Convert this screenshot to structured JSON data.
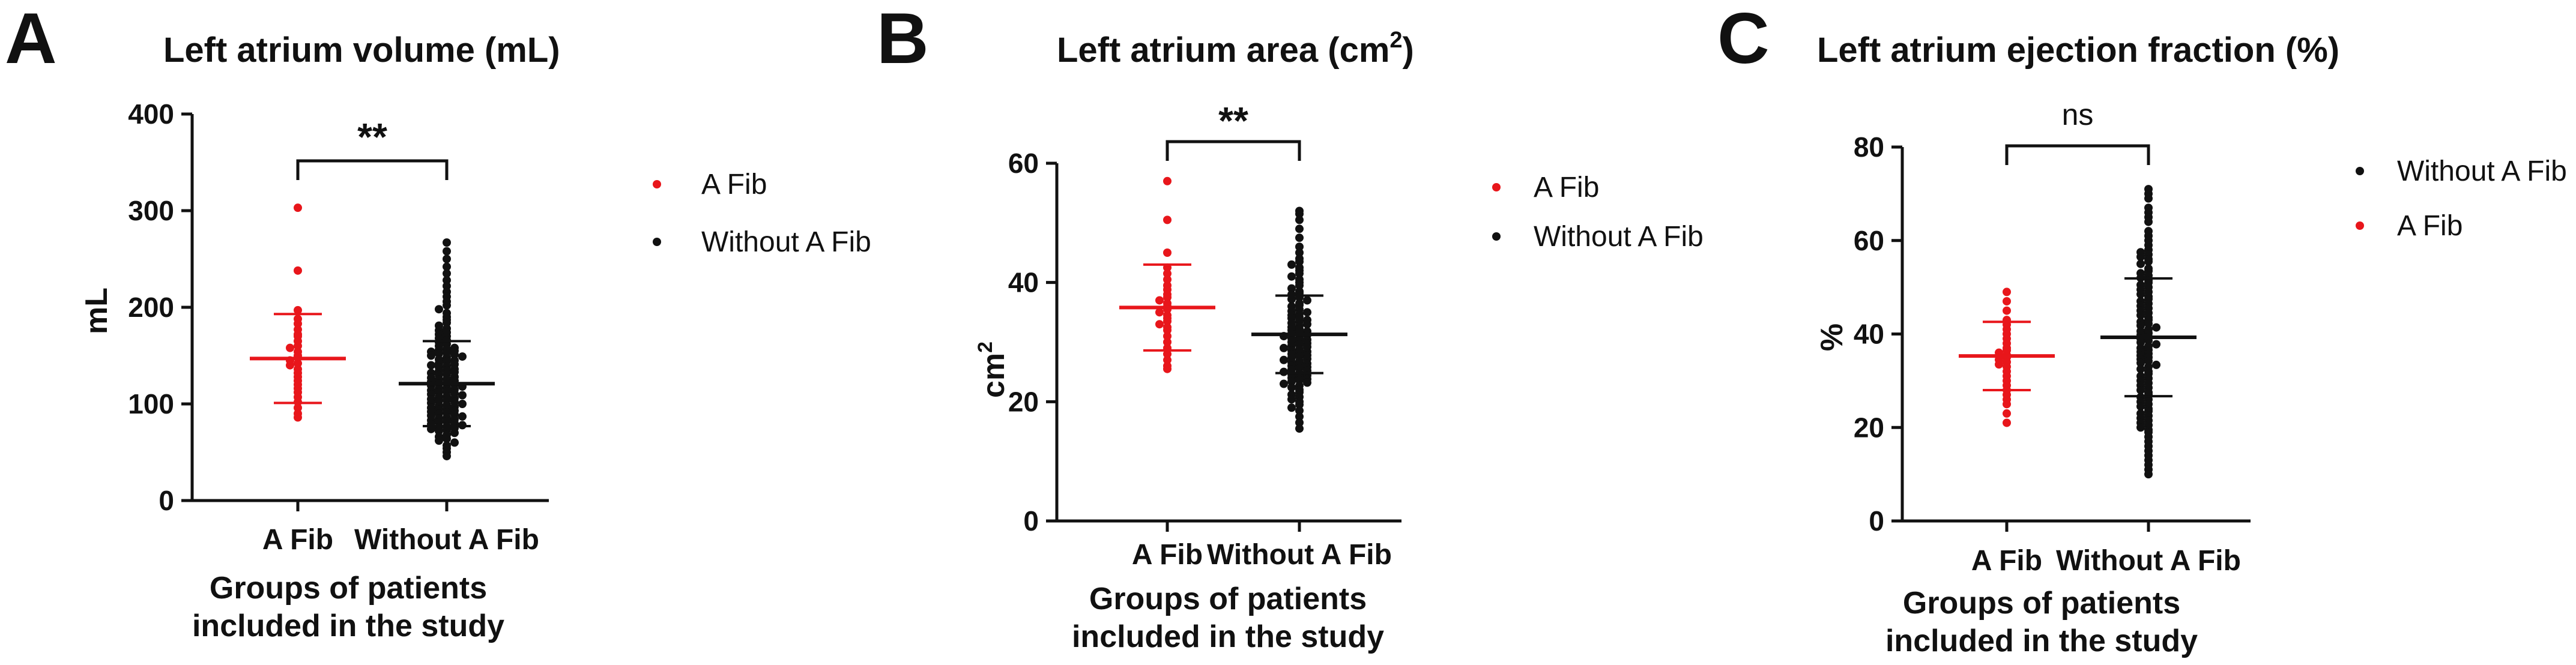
{
  "chart_data": [
    {
      "type": "scatter",
      "panel": "A",
      "title": "Left atrium volume (mL)",
      "ylabel": "mL",
      "xlabel_lines": [
        "Groups of patients",
        "included in the study"
      ],
      "ylim": [
        0,
        400
      ],
      "yticks": [
        0,
        100,
        200,
        300,
        400
      ],
      "categories": [
        "A Fib",
        "Without A Fib"
      ],
      "series": [
        {
          "name": "A Fib",
          "color": "#e8161b",
          "mean": 147,
          "sd": 46,
          "values": [
            303,
            238,
            197,
            188,
            183,
            177,
            172,
            170,
            165,
            160,
            158,
            154,
            150,
            148,
            145,
            142,
            140,
            136,
            132,
            128,
            124,
            120,
            116,
            112,
            107,
            102,
            96,
            90,
            86
          ]
        },
        {
          "name": "Without A Fib",
          "color": "#111111",
          "mean": 121,
          "sd": 44,
          "values": [
            267,
            258,
            250,
            242,
            235,
            228,
            222,
            216,
            211,
            206,
            202,
            198,
            194,
            190,
            187,
            184,
            181,
            178,
            176,
            174,
            172,
            170,
            168,
            166,
            164,
            162,
            160,
            158,
            157,
            156,
            155,
            154,
            153,
            152,
            151,
            150,
            149,
            148,
            146,
            145,
            144,
            142,
            141,
            140,
            139,
            138,
            136,
            135,
            134,
            133,
            132,
            131,
            130,
            128,
            127,
            126,
            125,
            124,
            123,
            122,
            121,
            120,
            119,
            118,
            117,
            116,
            115,
            114,
            113,
            112,
            111,
            110,
            109,
            108,
            107,
            106,
            105,
            104,
            103,
            102,
            101,
            100,
            99,
            98,
            97,
            96,
            95,
            94,
            93,
            92,
            91,
            90,
            89,
            88,
            87,
            86,
            85,
            84,
            83,
            82,
            81,
            80,
            79,
            78,
            77,
            76,
            75,
            74,
            73,
            72,
            70,
            68,
            66,
            64,
            62,
            60,
            57,
            54,
            50,
            46
          ]
        }
      ],
      "significance": "**",
      "legend": [
        {
          "label": "A Fib",
          "color": "#e8161b"
        },
        {
          "label": "Without A Fib",
          "color": "#111111"
        }
      ],
      "legend_position": "right"
    },
    {
      "type": "scatter",
      "panel": "B",
      "title": "Left atrium area (cm",
      "title_sup": "2",
      "title_end": ")",
      "ylabel": "cm",
      "ylabel_sup": "2",
      "xlabel_lines": [
        "Groups of patients",
        "included in the study"
      ],
      "ylim": [
        0,
        60
      ],
      "yticks": [
        0,
        20,
        40,
        60
      ],
      "categories": [
        "A Fib",
        "Without A Fib"
      ],
      "series": [
        {
          "name": "A Fib",
          "color": "#e8161b",
          "mean": 35.8,
          "sd": 7.2,
          "values": [
            57,
            50.5,
            45,
            42.5,
            41.5,
            40.5,
            39.5,
            38.8,
            38,
            37.5,
            37,
            36.5,
            36,
            35.5,
            35,
            34.5,
            34,
            33.5,
            33,
            32.5,
            32,
            31,
            30,
            29,
            28,
            27,
            26,
            25.5
          ]
        },
        {
          "name": "Without A Fib",
          "color": "#111111",
          "mean": 31.3,
          "sd": 6.5,
          "values": [
            52,
            51.5,
            50.5,
            49,
            47.5,
            46,
            45,
            44,
            43.5,
            43,
            42.5,
            42,
            41.5,
            41,
            40.5,
            40,
            39.5,
            39,
            38.5,
            38.2,
            38,
            37.5,
            37.2,
            37,
            36.5,
            36.2,
            36,
            35.5,
            35.2,
            35,
            34.7,
            34.5,
            34.2,
            34,
            33.7,
            33.5,
            33.2,
            33,
            32.7,
            32.5,
            32.2,
            32,
            31.8,
            31.6,
            31.4,
            31.2,
            31,
            30.8,
            30.6,
            30.4,
            30.2,
            30,
            29.8,
            29.6,
            29.4,
            29.2,
            29,
            28.8,
            28.6,
            28.4,
            28.2,
            28,
            27.8,
            27.6,
            27.4,
            27.2,
            27,
            26.8,
            26.6,
            26.4,
            26.2,
            26,
            25.8,
            25.6,
            25.4,
            25.2,
            25,
            24.8,
            24.6,
            24.4,
            24.2,
            24,
            23.8,
            23.6,
            23.4,
            23.2,
            23,
            22.7,
            22.4,
            22,
            21.6,
            21.2,
            20.8,
            20.4,
            20,
            19.5,
            19,
            18.5,
            17.5,
            16.5,
            15.5
          ]
        }
      ],
      "significance": "**",
      "legend": [
        {
          "label": "A Fib",
          "color": "#e8161b"
        },
        {
          "label": "Without A Fib",
          "color": "#111111"
        }
      ],
      "legend_position": "right"
    },
    {
      "type": "scatter",
      "panel": "C",
      "title": "Left atrium ejection fraction (%)",
      "ylabel": "%",
      "xlabel_lines": [
        "Groups of patients",
        "included in the study"
      ],
      "ylim": [
        0,
        80
      ],
      "yticks": [
        0,
        20,
        40,
        60,
        80
      ],
      "categories": [
        "A Fib",
        "Without A Fib"
      ],
      "series": [
        {
          "name": "A Fib",
          "color": "#e8161b",
          "mean": 35.3,
          "sd": 7.3,
          "values": [
            49,
            47,
            45,
            43,
            42,
            41,
            40,
            39,
            38,
            37,
            36.5,
            36,
            35.5,
            35,
            34.5,
            34,
            33.5,
            33,
            32,
            31,
            30,
            29,
            28,
            27,
            26,
            25,
            23,
            21
          ]
        },
        {
          "name": "Without A Fib",
          "color": "#111111",
          "mean": 39.3,
          "sd": 12.6,
          "values": [
            71,
            70,
            69,
            67,
            66,
            65,
            64,
            62,
            61,
            60,
            59,
            58,
            57.5,
            57,
            56.5,
            56,
            55.5,
            55,
            54,
            53.5,
            53,
            52.5,
            52,
            51.5,
            51,
            50.5,
            50,
            49.5,
            49,
            48.5,
            48,
            47.5,
            47,
            46.5,
            46,
            45.5,
            45,
            44.5,
            44,
            43.5,
            43,
            42.6,
            42.2,
            41.8,
            41.4,
            41,
            40.6,
            40.2,
            39.8,
            39.4,
            39,
            38.6,
            38.2,
            37.8,
            37.4,
            37,
            36.6,
            36.2,
            35.8,
            35.4,
            35,
            34.6,
            34.2,
            33.8,
            33.4,
            33,
            32.5,
            32,
            31.5,
            31,
            30.5,
            30,
            29.5,
            29,
            28.5,
            28,
            27.5,
            27,
            26.5,
            26,
            25.5,
            25,
            24.5,
            24,
            23.5,
            23,
            22.5,
            22,
            21.5,
            21,
            20.5,
            20,
            19.5,
            19,
            18,
            17,
            16,
            15,
            14,
            13,
            12,
            11,
            10
          ]
        }
      ],
      "significance": "ns",
      "legend": [
        {
          "label": "Without A Fib",
          "color": "#111111"
        },
        {
          "label": "A Fib",
          "color": "#e8161b"
        }
      ],
      "legend_position": "right"
    }
  ]
}
